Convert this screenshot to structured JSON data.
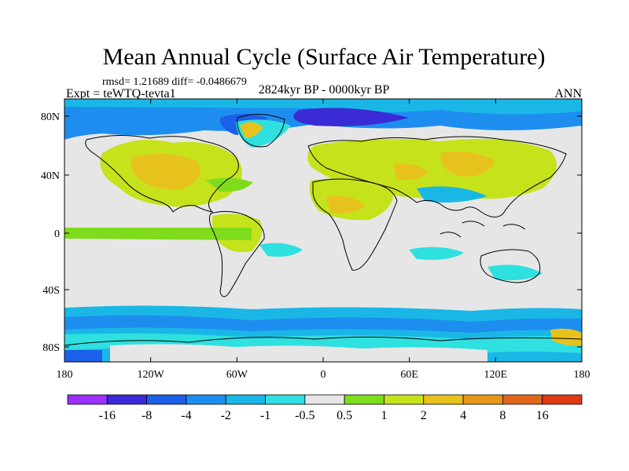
{
  "title": "Mean Annual Cycle (Surface Air Temperature)",
  "stats": "rmsd= 1.21689 diff= -0.0486679",
  "experiment": "Expt = teWTQ-tevta1",
  "period": "2824kyr BP - 0000kyr BP",
  "season": "ANN",
  "axes": {
    "lat_ticks": [
      "80N",
      "40N",
      "0",
      "40S",
      "80S"
    ],
    "lon_ticks": [
      "180",
      "120W",
      "60W",
      "0",
      "60E",
      "120E",
      "180"
    ]
  },
  "colorbar": {
    "labels": [
      "-16",
      "-8",
      "-4",
      "-2",
      "-1",
      "-0.5",
      "0.5",
      "1",
      "2",
      "4",
      "8",
      "16"
    ],
    "colors": [
      "#9b30ff",
      "#3a2bd6",
      "#1c5fe8",
      "#1d8ef0",
      "#1ab7e6",
      "#2ee0df",
      "#e6e6e6",
      "#7fdc1c",
      "#c6e21a",
      "#e8c21c",
      "#e6981a",
      "#e2661a",
      "#e03a12"
    ]
  },
  "colors": {
    "background": "#e6e6e6",
    "cold_strong": "#1c5fe8",
    "cold": "#1d8ef0",
    "cool": "#2ee0df",
    "warm_light": "#7fdc1c",
    "warm": "#c6e21a",
    "hot": "#e8c21c"
  }
}
